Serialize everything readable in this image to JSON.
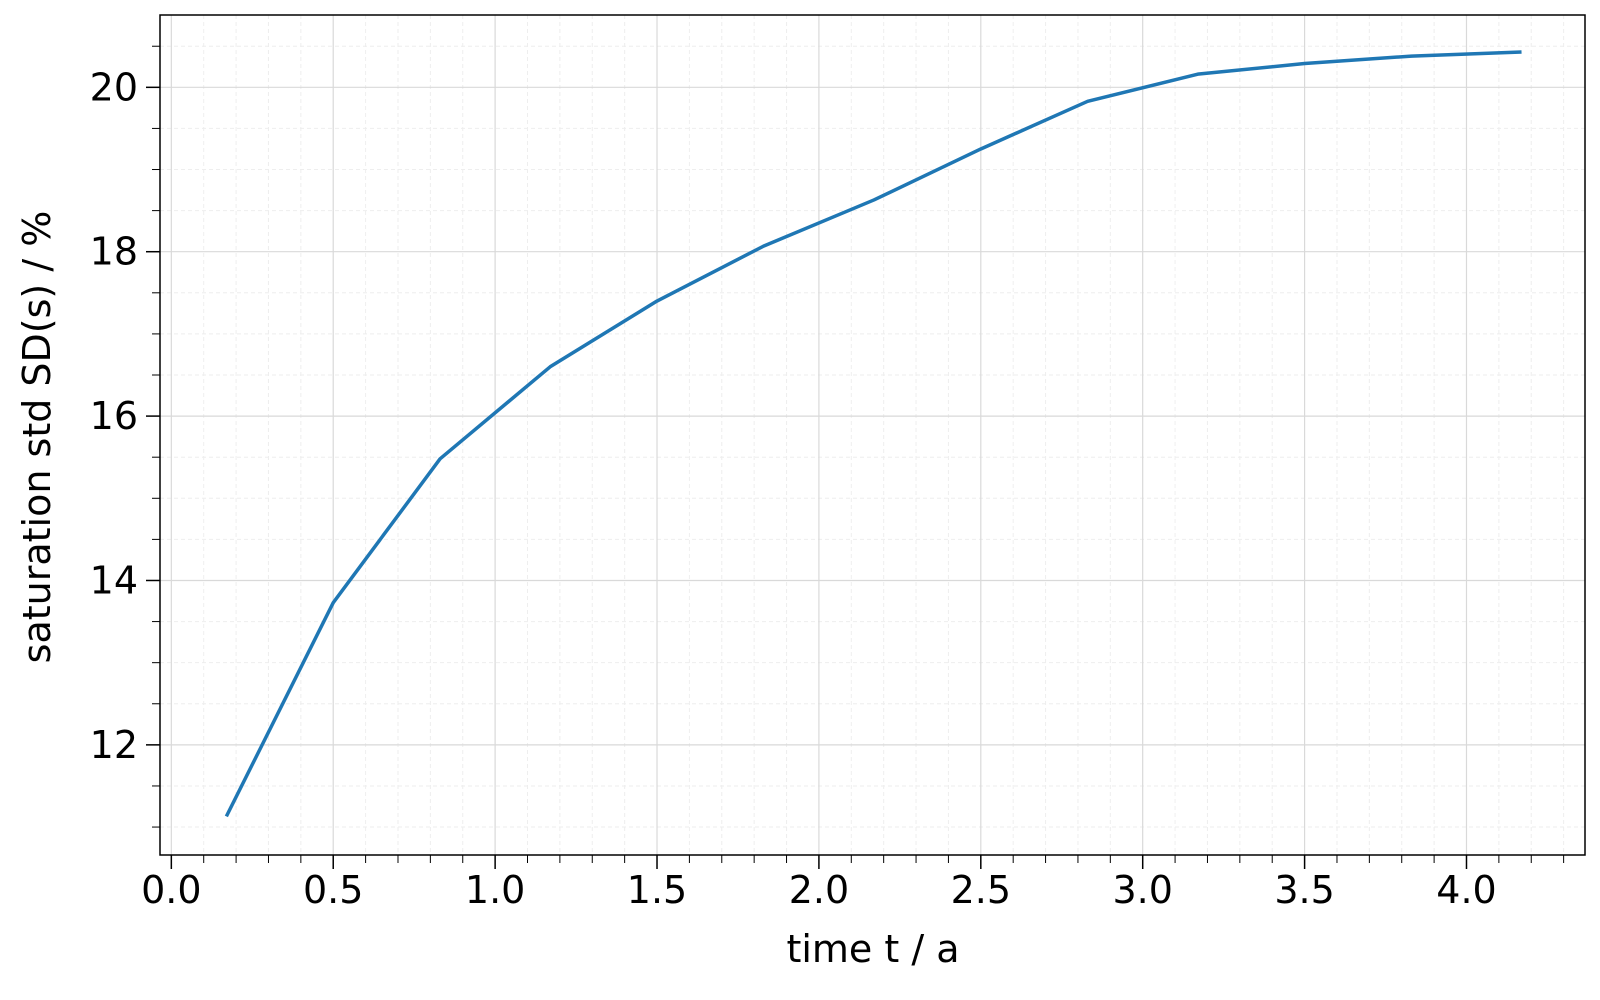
{
  "chart_data": {
    "type": "line",
    "xlabel": "time t / a",
    "ylabel": "saturation std SD(s) / %",
    "x": [
      0.17,
      0.5,
      0.83,
      1.17,
      1.5,
      1.83,
      2.17,
      2.5,
      2.83,
      3.17,
      3.5,
      3.83,
      4.17
    ],
    "series": [
      {
        "color": "#1f77b4",
        "values": [
          11.13,
          13.73,
          15.48,
          16.6,
          17.4,
          18.07,
          18.63,
          19.25,
          19.83,
          20.16,
          20.29,
          20.38,
          20.43
        ]
      }
    ],
    "xlim": [
      -0.035,
      4.366
    ],
    "ylim": [
      10.66,
      20.88
    ],
    "xticks": [
      {
        "value": 0,
        "label": "0.0"
      },
      {
        "value": 0.5,
        "label": "0.5"
      },
      {
        "value": 1,
        "label": "1.0"
      },
      {
        "value": 1.5,
        "label": "1.5"
      },
      {
        "value": 2,
        "label": "2.0"
      },
      {
        "value": 2.5,
        "label": "2.5"
      },
      {
        "value": 3,
        "label": "3.0"
      },
      {
        "value": 3.5,
        "label": "3.5"
      },
      {
        "value": 4,
        "label": "4.0"
      }
    ],
    "yticks": [
      12,
      14,
      16,
      18,
      20
    ],
    "xminorticks": [
      0.1,
      0.2,
      0.3,
      0.4,
      0.6,
      0.7,
      0.8,
      0.9,
      1.1,
      1.2,
      1.3,
      1.4,
      1.6,
      1.7,
      1.8,
      1.9,
      2.1,
      2.2,
      2.3,
      2.4,
      2.6,
      2.7,
      2.8,
      2.9,
      3.1,
      3.2,
      3.3,
      3.4,
      3.6,
      3.7,
      3.8,
      3.9,
      4.1,
      4.2,
      4.3
    ],
    "yminorticks": [
      11,
      11.5,
      12.5,
      13,
      13.5,
      14.5,
      15,
      15.5,
      16.5,
      17,
      17.5,
      18.5,
      19,
      19.5,
      20.5
    ],
    "grid": true
  }
}
